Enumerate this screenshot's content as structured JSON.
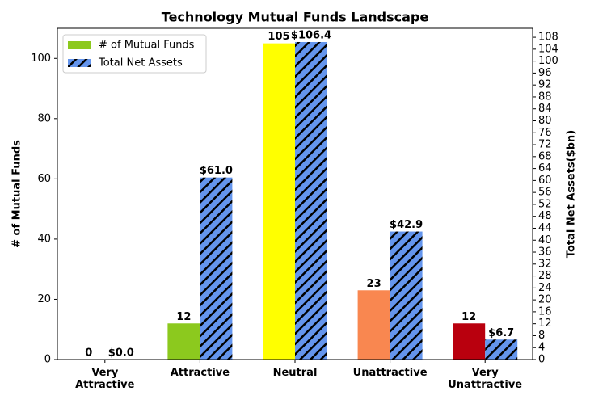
{
  "chart_data": {
    "type": "bar",
    "title": "Technology Mutual Funds Landscape",
    "ylabel": "# of Mutual Funds",
    "y2label": "Total Net Assets($bn)",
    "categories": [
      "Very Attractive",
      "Attractive",
      "Neutral",
      "Unattractive",
      "Very Unattractive"
    ],
    "series": [
      {
        "name": "# of Mutual Funds",
        "color": "#8cc91e",
        "bar_colors": [
          "#2e7d32",
          "#8cc91e",
          "#ffff00",
          "#f98750",
          "#b9000e"
        ],
        "values": [
          0,
          12,
          105,
          23,
          12
        ]
      },
      {
        "name": "Total Net Assets",
        "color": "#6495ed",
        "hatch": true,
        "axis": "y2",
        "values": [
          0.0,
          61.0,
          106.4,
          42.9,
          6.7
        ],
        "value_labels": [
          "$0.0",
          "$61.0",
          "$106.4",
          "$42.9",
          "$6.7"
        ]
      }
    ],
    "ylim": [
      0,
      110
    ],
    "yticks": [
      0,
      20,
      40,
      60,
      80,
      100
    ],
    "y2lim": [
      0,
      111
    ],
    "y2ticks": [
      0,
      4,
      8,
      12,
      16,
      20,
      24,
      28,
      32,
      36,
      40,
      44,
      48,
      52,
      56,
      60,
      64,
      68,
      72,
      76,
      80,
      84,
      88,
      92,
      96,
      100,
      104,
      108
    ],
    "legend": "upper left"
  }
}
